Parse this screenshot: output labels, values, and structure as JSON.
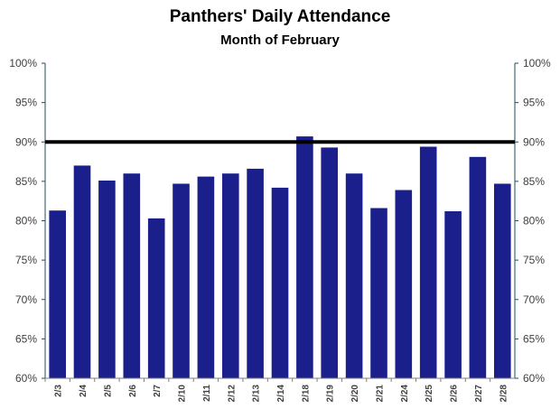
{
  "chart_data": {
    "type": "bar",
    "title": "Panthers' Daily Attendance",
    "subtitle": "Month of February",
    "categories": [
      "2/3",
      "2/4",
      "2/5",
      "2/6",
      "2/7",
      "2/10",
      "2/11",
      "2/12",
      "2/13",
      "2/14",
      "2/18",
      "2/19",
      "2/20",
      "2/21",
      "2/24",
      "2/25",
      "2/26",
      "2/27",
      "2/28"
    ],
    "values": [
      81.3,
      87.0,
      85.1,
      86.0,
      80.3,
      84.7,
      85.6,
      86.0,
      86.6,
      84.2,
      90.7,
      89.3,
      86.0,
      81.6,
      83.9,
      89.4,
      81.2,
      88.1,
      84.7
    ],
    "ylim": [
      0.6,
      1.0
    ],
    "ylim_percent": [
      60,
      100
    ],
    "y_ticks": [
      "60%",
      "65%",
      "70%",
      "75%",
      "80%",
      "85%",
      "90%",
      "95%",
      "100%"
    ],
    "y_tick_values": [
      60,
      65,
      70,
      75,
      80,
      85,
      90,
      95,
      100
    ],
    "secondary_y_axis": true,
    "reference_line": 90,
    "bar_color": "#1a1f8c",
    "reference_line_color": "#000000",
    "axis_color": "#1f4e5f",
    "grid": false,
    "legend": "none"
  }
}
